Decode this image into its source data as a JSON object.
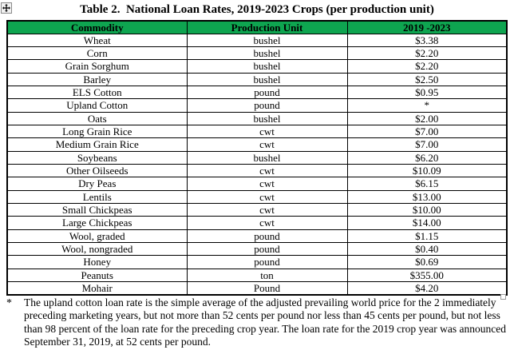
{
  "page": {
    "title": "Table 2.  National Loan Rates, 2019-2023 Crops (per production unit)"
  },
  "colors": {
    "header_bg": "#0EA550",
    "header_text": "#000000",
    "border": "#000000"
  },
  "icons": {
    "move_handle": "table-move-handle-icon",
    "anchor": "anchor-square"
  },
  "table": {
    "headers": [
      "Commodity",
      "Production Unit",
      "2019 -2023"
    ],
    "rows": [
      {
        "commodity": "Wheat",
        "unit": "bushel",
        "rate": "$3.38"
      },
      {
        "commodity": "Corn",
        "unit": "bushel",
        "rate": "$2.20"
      },
      {
        "commodity": "Grain Sorghum",
        "unit": "bushel",
        "rate": "$2.20"
      },
      {
        "commodity": "Barley",
        "unit": "bushel",
        "rate": "$2.50"
      },
      {
        "commodity": "ELS Cotton",
        "unit": "pound",
        "rate": "$0.95"
      },
      {
        "commodity": "Upland Cotton",
        "unit": "pound",
        "rate": "*"
      },
      {
        "commodity": "Oats",
        "unit": "bushel",
        "rate": "$2.00"
      },
      {
        "commodity": "Long Grain Rice",
        "unit": "cwt",
        "rate": "$7.00"
      },
      {
        "commodity": "Medium Grain Rice",
        "unit": "cwt",
        "rate": "$7.00"
      },
      {
        "commodity": "Soybeans",
        "unit": "bushel",
        "rate": "$6.20"
      },
      {
        "commodity": "Other Oilseeds",
        "unit": "cwt",
        "rate": "$10.09"
      },
      {
        "commodity": "Dry Peas",
        "unit": "cwt",
        "rate": "$6.15"
      },
      {
        "commodity": "Lentils",
        "unit": "cwt",
        "rate": "$13.00"
      },
      {
        "commodity": "Small Chickpeas",
        "unit": "cwt",
        "rate": "$10.00"
      },
      {
        "commodity": "Large Chickpeas",
        "unit": "cwt",
        "rate": "$14.00"
      },
      {
        "commodity": "Wool, graded",
        "unit": "pound",
        "rate": "$1.15"
      },
      {
        "commodity": "Wool, nongraded",
        "unit": "pound",
        "rate": "$0.40"
      },
      {
        "commodity": "Honey",
        "unit": "pound",
        "rate": "$0.69"
      },
      {
        "commodity": "Peanuts",
        "unit": "ton",
        "rate": "$355.00"
      },
      {
        "commodity": "Mohair",
        "unit": "Pound",
        "rate": "$4.20"
      }
    ]
  },
  "footnote": {
    "marker": "*",
    "lines": [
      "The upland cotton loan rate is the simple average of the adjusted prevailing world price for the 2 immediately",
      "preceding marketing years, but not more than 52 cents per pound nor less than 45 cents per pound, but not less",
      "than 98 percent of the loan rate for the preceding crop year. The loan rate for the 2019 crop year was announced",
      "September 31, 2019, at 52 cents per pound."
    ]
  }
}
